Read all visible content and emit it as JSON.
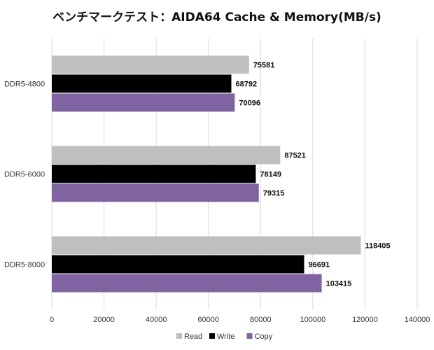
{
  "chart_data": {
    "type": "bar",
    "orientation": "horizontal",
    "title": "ベンチマークテスト：AIDA64 Cache & Memory(MB/s)",
    "categories": [
      "DDR5-4800",
      "DDR5-6000",
      "DDR5-8000"
    ],
    "series": [
      {
        "name": "Read",
        "color": "#bfbfbf",
        "values": [
          75581,
          87521,
          118405
        ]
      },
      {
        "name": "Write",
        "color": "#000000",
        "values": [
          68792,
          78149,
          96691
        ]
      },
      {
        "name": "Copy",
        "color": "#8064a2",
        "values": [
          70096,
          79315,
          103415
        ]
      }
    ],
    "xlim": [
      0,
      140000
    ],
    "xticks": [
      "0",
      "20000",
      "40000",
      "60000",
      "80000",
      "100000",
      "120000",
      "140000"
    ],
    "grid": true,
    "legend": "bottom",
    "data_labels": true
  }
}
